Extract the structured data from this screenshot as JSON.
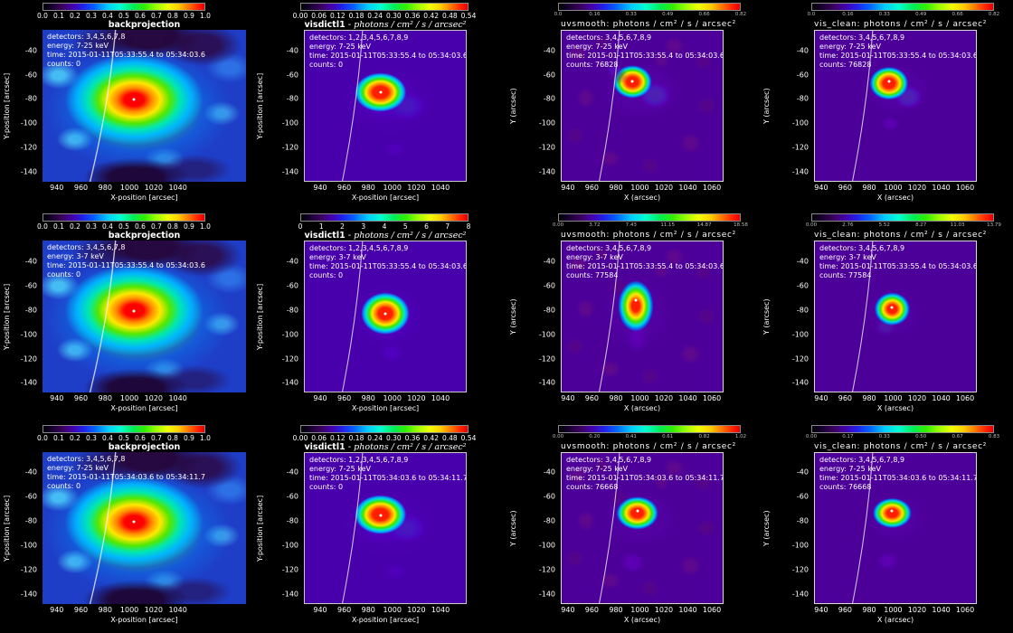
{
  "chart_data": {
    "type": "heatmap",
    "layout": "3 rows x 4 columns of solar X-ray image reconstructions",
    "panels": [
      {
        "algorithm": "backprojection",
        "title_name": "backprojection",
        "title_sep": "",
        "title_units": "",
        "colorbar_ticks": [
          "0.0",
          "0.1",
          "0.2",
          "0.3",
          "0.4",
          "0.5",
          "0.6",
          "0.7",
          "0.8",
          "0.9",
          "1.0"
        ],
        "detectors_line": "detectors: 3,4,5,6,7,8",
        "energy_line": "energy: 7-25 keV",
        "time_line": "time: 2015-01-11T05:33:55.4 to 05:34:03.6",
        "counts_line": "counts: 0",
        "x_ticks": [
          "940",
          "960",
          "980",
          "1000",
          "1020",
          "1040"
        ],
        "y_ticks": [
          "-40",
          "-60",
          "-80",
          "-100",
          "-120",
          "-140"
        ],
        "xlabel": "X-position [arcsec]",
        "ylabel": "Y-position [arcsec]",
        "xlim": [
          928,
          1058
        ],
        "ylim": [
          -152,
          -28
        ],
        "peak_arcsec": {
          "x": 1000,
          "y": -85
        },
        "map_style": "bp1"
      },
      {
        "algorithm": "visdictl1",
        "title_name": "visdictl1",
        "title_sep": " - ",
        "title_units": "photons / cm² / s / arcsec²",
        "colorbar_ticks": [
          "0.00",
          "0.06",
          "0.12",
          "0.18",
          "0.24",
          "0.30",
          "0.36",
          "0.42",
          "0.48",
          "0.54"
        ],
        "detectors_line": "detectors: 1,2,3,4,5,6,7,8,9",
        "energy_line": "energy: 7-25 keV",
        "time_line": "time: 2015-01-11T05:33:55.4 to 05:34:03.6",
        "counts_line": "counts: 0",
        "x_ticks": [
          "940",
          "960",
          "980",
          "1000",
          "1020",
          "1040"
        ],
        "y_ticks": [
          "-40",
          "-60",
          "-80",
          "-100",
          "-120",
          "-140"
        ],
        "xlabel": "X-position [arcsec]",
        "ylabel": "Y-position [arcsec]",
        "xlim": [
          930,
          1058
        ],
        "ylim": [
          -152,
          -28
        ],
        "peak_arcsec": {
          "x": 997,
          "y": -85
        },
        "map_style": "vd1"
      },
      {
        "algorithm": "uvsmooth",
        "title_name": "uvsmooth",
        "title_sep": ": ",
        "title_units": "photons / cm² / s / arcsec²",
        "colorbar_ticks": [
          "0.0",
          "0.16",
          "0.33",
          "0.49",
          "0.66",
          "0.82"
        ],
        "detectors_line": "detectors: 3,4,5,6,7,8,9",
        "energy_line": "energy: 7-25 keV",
        "time_line": "time: 2015-01-11T05:33:55.4 to 05:34:03.6",
        "counts_line": "counts: 76828",
        "x_ticks": [
          "940",
          "960",
          "980",
          "1000",
          "1020",
          "1040",
          "1060"
        ],
        "y_ticks": [
          "-40",
          "-60",
          "-80",
          "-100",
          "-120",
          "-140"
        ],
        "xlabel": "X (arcsec)",
        "ylabel": "Y (arcsec)",
        "xlim": [
          932,
          1065
        ],
        "ylim": [
          -152,
          -28
        ],
        "peak_arcsec": {
          "x": 995,
          "y": -82
        },
        "map_style": "uv1"
      },
      {
        "algorithm": "vis_clean",
        "title_name": "vis_clean",
        "title_sep": ": ",
        "title_units": "photons / cm² / s / arcsec²",
        "colorbar_ticks": [
          "0.0",
          "0.16",
          "0.33",
          "0.49",
          "0.66",
          "0.82"
        ],
        "detectors_line": "detectors: 3,4,5,6,7,8,9",
        "energy_line": "energy: 7-25 keV",
        "time_line": "time: 2015-01-11T05:33:55.4 to 05:34:03.6",
        "counts_line": "counts: 76828",
        "x_ticks": [
          "940",
          "960",
          "980",
          "1000",
          "1020",
          "1040",
          "1060"
        ],
        "y_ticks": [
          "-40",
          "-60",
          "-80",
          "-100",
          "-120",
          "-140"
        ],
        "xlabel": "X (arcsec)",
        "ylabel": "Y (arcsec)",
        "xlim": [
          932,
          1065
        ],
        "ylim": [
          -152,
          -28
        ],
        "peak_arcsec": {
          "x": 998,
          "y": -83
        },
        "map_style": "vc1"
      },
      {
        "algorithm": "backprojection",
        "title_name": "backprojection",
        "title_sep": "",
        "title_units": "",
        "colorbar_ticks": [
          "0.0",
          "0.1",
          "0.2",
          "0.3",
          "0.4",
          "0.5",
          "0.6",
          "0.7",
          "0.8",
          "0.9",
          "1.0"
        ],
        "detectors_line": "detectors: 3,4,5,6,7,8",
        "energy_line": "energy: 3-7 keV",
        "time_line": "time: 2015-01-11T05:33:55.4 to 05:34:03.6",
        "counts_line": "counts: 0",
        "x_ticks": [
          "940",
          "960",
          "980",
          "1000",
          "1020",
          "1040"
        ],
        "y_ticks": [
          "-40",
          "-60",
          "-80",
          "-100",
          "-120",
          "-140"
        ],
        "xlabel": "X-position [arcsec]",
        "ylabel": "Y-position [arcsec]",
        "xlim": [
          928,
          1058
        ],
        "ylim": [
          -152,
          -28
        ],
        "peak_arcsec": {
          "x": 1000,
          "y": -86
        },
        "map_style": "bp2"
      },
      {
        "algorithm": "visdictl1",
        "title_name": "visdictl1",
        "title_sep": " - ",
        "title_units": "photons / cm² / s / arcsec²",
        "colorbar_ticks": [
          "0",
          "1",
          "2",
          "3",
          "4",
          "5",
          "6",
          "7",
          "8"
        ],
        "detectors_line": "detectors: 1,2,3,4,5,6,7,8,9",
        "energy_line": "energy: 3-7 keV",
        "time_line": "time: 2015-01-11T05:33:55.4 to 05:34:03.6",
        "counts_line": "counts: 0",
        "x_ticks": [
          "940",
          "960",
          "980",
          "1000",
          "1020",
          "1040"
        ],
        "y_ticks": [
          "-40",
          "-60",
          "-80",
          "-100",
          "-120",
          "-140"
        ],
        "xlabel": "X-position [arcsec]",
        "ylabel": "Y-position [arcsec]",
        "xlim": [
          930,
          1058
        ],
        "ylim": [
          -152,
          -28
        ],
        "peak_arcsec": {
          "x": 997,
          "y": -88
        },
        "map_style": "vd2"
      },
      {
        "algorithm": "uvsmooth",
        "title_name": "uvsmooth",
        "title_sep": ": ",
        "title_units": "photons / cm² / s / arcsec²",
        "colorbar_ticks": [
          "0.00",
          "3.72",
          "7.43",
          "11.15",
          "14.87",
          "18.58"
        ],
        "detectors_line": "detectors: 3,4,5,6,7,8,9",
        "energy_line": "energy: 3-7 keV",
        "time_line": "time: 2015-01-11T05:33:55.4 to 05:34:03.6",
        "counts_line": "counts: 77584",
        "x_ticks": [
          "940",
          "960",
          "980",
          "1000",
          "1020",
          "1040",
          "1060"
        ],
        "y_ticks": [
          "-40",
          "-60",
          "-80",
          "-100",
          "-120",
          "-140"
        ],
        "xlabel": "X (arcsec)",
        "ylabel": "Y (arcsec)",
        "xlim": [
          932,
          1065
        ],
        "ylim": [
          -152,
          -28
        ],
        "peak_arcsec": {
          "x": 996,
          "y": -85
        },
        "map_style": "uv2"
      },
      {
        "algorithm": "vis_clean",
        "title_name": "vis_clean",
        "title_sep": ": ",
        "title_units": "photons / cm² / s / arcsec²",
        "colorbar_ticks": [
          "0.00",
          "2.76",
          "5.52",
          "8.27",
          "11.03",
          "13.79"
        ],
        "detectors_line": "detectors: 3,4,5,6,7,8,9",
        "energy_line": "energy: 3-7 keV",
        "time_line": "time: 2015-01-11T05:33:55.4 to 05:34:03.6",
        "counts_line": "counts: 77584",
        "x_ticks": [
          "940",
          "960",
          "980",
          "1000",
          "1020",
          "1040",
          "1060"
        ],
        "y_ticks": [
          "-40",
          "-60",
          "-80",
          "-100",
          "-120",
          "-140"
        ],
        "xlabel": "X (arcsec)",
        "ylabel": "Y (arcsec)",
        "xlim": [
          932,
          1065
        ],
        "ylim": [
          -152,
          -28
        ],
        "peak_arcsec": {
          "x": 998,
          "y": -87
        },
        "map_style": "vc2"
      },
      {
        "algorithm": "backprojection",
        "title_name": "backprojection",
        "title_sep": "",
        "title_units": "",
        "colorbar_ticks": [
          "0.0",
          "0.1",
          "0.2",
          "0.3",
          "0.4",
          "0.5",
          "0.6",
          "0.7",
          "0.8",
          "0.9",
          "1.0"
        ],
        "detectors_line": "detectors: 3,4,5,6,7,8",
        "energy_line": "energy: 7-25 keV",
        "time_line": "time: 2015-01-11T05:34:03.6 to 05:34:11.7",
        "counts_line": "counts: 0",
        "x_ticks": [
          "940",
          "960",
          "980",
          "1000",
          "1020",
          "1040"
        ],
        "y_ticks": [
          "-40",
          "-60",
          "-80",
          "-100",
          "-120",
          "-140"
        ],
        "xlabel": "X-position [arcsec]",
        "ylabel": "Y-position [arcsec]",
        "xlim": [
          928,
          1058
        ],
        "ylim": [
          -152,
          -28
        ],
        "peak_arcsec": {
          "x": 1000,
          "y": -85
        },
        "map_style": "bp3"
      },
      {
        "algorithm": "visdictl1",
        "title_name": "visdictl1",
        "title_sep": " - ",
        "title_units": "photons / cm² / s / arcsec²",
        "colorbar_ticks": [
          "0.00",
          "0.06",
          "0.12",
          "0.18",
          "0.24",
          "0.30",
          "0.36",
          "0.42",
          "0.48",
          "0.54"
        ],
        "detectors_line": "detectors: 1,2,3,4,5,6,7,8,9",
        "energy_line": "energy: 7-25 keV",
        "time_line": "time: 2015-01-11T05:34:03.6 to 05:34:11.7",
        "counts_line": "counts: 0",
        "x_ticks": [
          "940",
          "960",
          "980",
          "1000",
          "1020",
          "1040"
        ],
        "y_ticks": [
          "-40",
          "-60",
          "-80",
          "-100",
          "-120",
          "-140"
        ],
        "xlabel": "X-position [arcsec]",
        "ylabel": "Y-position [arcsec]",
        "xlim": [
          930,
          1058
        ],
        "ylim": [
          -152,
          -28
        ],
        "peak_arcsec": {
          "x": 996,
          "y": -86
        },
        "map_style": "vd3"
      },
      {
        "algorithm": "uvsmooth",
        "title_name": "uvsmooth",
        "title_sep": ": ",
        "title_units": "photons / cm² / s / arcsec²",
        "colorbar_ticks": [
          "0.00",
          "0.20",
          "0.41",
          "0.61",
          "0.82",
          "1.02"
        ],
        "detectors_line": "detectors: 3,4,5,6,7,8,9",
        "energy_line": "energy: 7-25 keV",
        "time_line": "time: 2015-01-11T05:34:03.6 to 05:34:11.7",
        "counts_line": "counts: 76668",
        "x_ticks": [
          "940",
          "960",
          "980",
          "1000",
          "1020",
          "1040",
          "1060"
        ],
        "y_ticks": [
          "-40",
          "-60",
          "-80",
          "-100",
          "-120",
          "-140"
        ],
        "xlabel": "X (arcsec)",
        "ylabel": "Y (arcsec)",
        "xlim": [
          932,
          1065
        ],
        "ylim": [
          -152,
          -28
        ],
        "peak_arcsec": {
          "x": 997,
          "y": -84
        },
        "map_style": "uv3"
      },
      {
        "algorithm": "vis_clean",
        "title_name": "vis_clean",
        "title_sep": ": ",
        "title_units": "photons / cm² / s / arcsec²",
        "colorbar_ticks": [
          "0.00",
          "0.17",
          "0.33",
          "0.50",
          "0.67",
          "0.83"
        ],
        "detectors_line": "detectors: 3,4,5,6,7,8,9",
        "energy_line": "energy: 7-25 keV",
        "time_line": "time: 2015-01-11T05:34:03.6 to 05:34:11.7",
        "counts_line": "counts: 76668",
        "x_ticks": [
          "940",
          "960",
          "980",
          "1000",
          "1020",
          "1040",
          "1060"
        ],
        "y_ticks": [
          "-40",
          "-60",
          "-80",
          "-100",
          "-120",
          "-140"
        ],
        "xlabel": "X (arcsec)",
        "ylabel": "Y (arcsec)",
        "xlim": [
          932,
          1065
        ],
        "ylim": [
          -152,
          -28
        ],
        "peak_arcsec": {
          "x": 999,
          "y": -84
        },
        "map_style": "vc3"
      }
    ]
  }
}
